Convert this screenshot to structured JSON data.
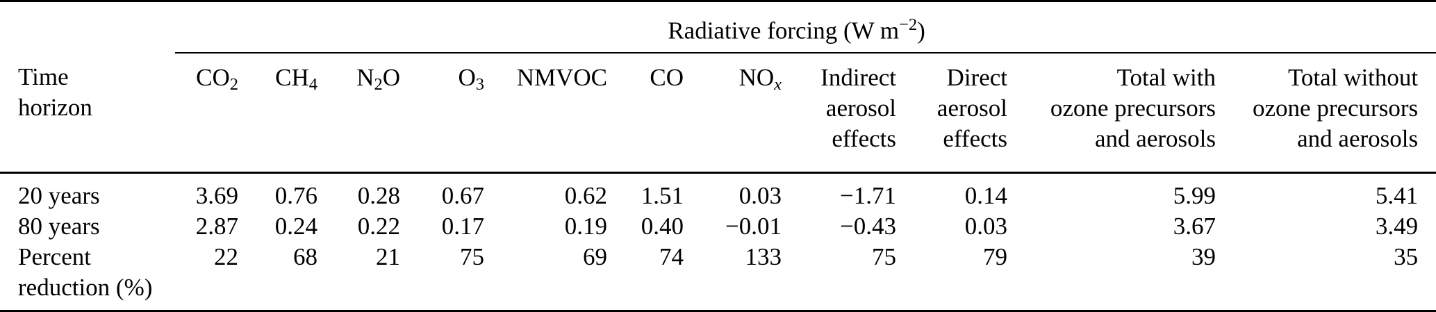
{
  "table": {
    "group_header": {
      "rich": [
        {
          "t": "Radiative forcing (W m"
        },
        {
          "t": "−2",
          "sup": true
        },
        {
          "t": ")"
        }
      ]
    },
    "corner_label": {
      "rich": [
        {
          "t": "Time"
        },
        {
          "br": true
        },
        {
          "t": "horizon"
        }
      ]
    },
    "columns": [
      {
        "id": "co2",
        "rich": [
          {
            "t": "CO"
          },
          {
            "t": "2",
            "sub": true
          }
        ]
      },
      {
        "id": "ch4",
        "rich": [
          {
            "t": "CH"
          },
          {
            "t": "4",
            "sub": true
          }
        ]
      },
      {
        "id": "n2o",
        "rich": [
          {
            "t": "N"
          },
          {
            "t": "2",
            "sub": true
          },
          {
            "t": "O"
          }
        ]
      },
      {
        "id": "o3",
        "rich": [
          {
            "t": "O"
          },
          {
            "t": "3",
            "sub": true
          }
        ]
      },
      {
        "id": "nmvoc",
        "rich": [
          {
            "t": "NMVOC"
          }
        ]
      },
      {
        "id": "co",
        "rich": [
          {
            "t": "CO"
          }
        ]
      },
      {
        "id": "nox",
        "rich": [
          {
            "t": "NO"
          },
          {
            "t": "x",
            "sub": true,
            "i": true
          }
        ]
      },
      {
        "id": "indirect_aerosol_effects",
        "rich": [
          {
            "t": "Indirect"
          },
          {
            "br": true
          },
          {
            "t": "aerosol"
          },
          {
            "br": true
          },
          {
            "t": "effects"
          }
        ]
      },
      {
        "id": "direct_aerosol_effects",
        "rich": [
          {
            "t": "Direct"
          },
          {
            "br": true
          },
          {
            "t": "aerosol"
          },
          {
            "br": true
          },
          {
            "t": "effects"
          }
        ]
      },
      {
        "id": "total_with_ozone_precursors_and_aerosols",
        "rich": [
          {
            "t": "Total with"
          },
          {
            "br": true
          },
          {
            "t": "ozone precursors"
          },
          {
            "br": true
          },
          {
            "t": "and aerosols"
          }
        ]
      },
      {
        "id": "total_without_ozone_precursors_and_aerosols",
        "rich": [
          {
            "t": "Total without"
          },
          {
            "br": true
          },
          {
            "t": "ozone precursors"
          },
          {
            "br": true
          },
          {
            "t": "and aerosols"
          }
        ]
      }
    ],
    "rows": [
      {
        "label": {
          "rich": [
            {
              "t": "20 years"
            }
          ]
        },
        "values": [
          "3.69",
          "0.76",
          "0.28",
          "0.67",
          "0.62",
          "1.51",
          "0.03",
          "−1.71",
          "0.14",
          "5.99",
          "5.41"
        ]
      },
      {
        "label": {
          "rich": [
            {
              "t": "80 years"
            }
          ]
        },
        "values": [
          "2.87",
          "0.24",
          "0.22",
          "0.17",
          "0.19",
          "0.40",
          "−0.01",
          "−0.43",
          "0.03",
          "3.67",
          "3.49"
        ]
      },
      {
        "label": {
          "rich": [
            {
              "t": "Percent"
            },
            {
              "br": true
            },
            {
              "t": "reduction (%)"
            }
          ]
        },
        "values": [
          "22",
          "68",
          "21",
          "75",
          "69",
          "74",
          "133",
          "75",
          "79",
          "39",
          "35"
        ]
      }
    ],
    "colors": {
      "text": "#000000",
      "rule": "#000000",
      "background": "#ffffff"
    }
  }
}
